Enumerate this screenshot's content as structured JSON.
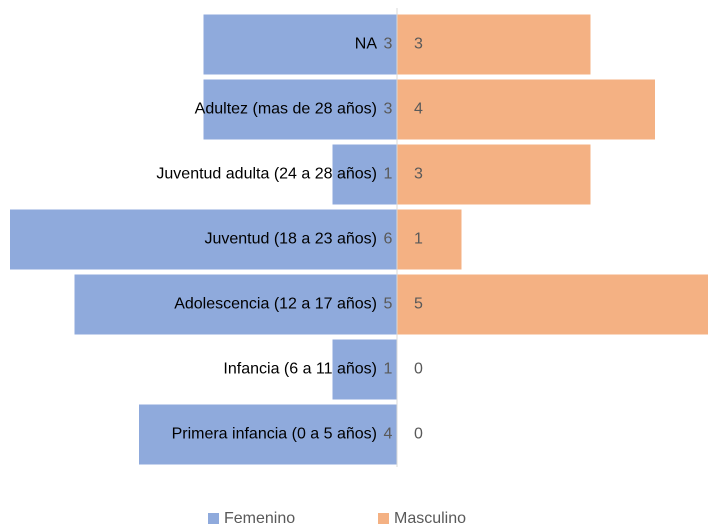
{
  "chart_data": {
    "type": "bar",
    "orientation": "horizontal",
    "categories": [
      "NA",
      "Adultez (mas de 28 años)",
      "Juventud adulta (24 a 28 años)",
      "Juventud (18 a 23 años)",
      "Adolescencia (12 a 17 años)",
      "Infancia (6 a 11 años)",
      "Primera infancia (0 a 5 años)"
    ],
    "series": [
      {
        "name": "Femenino",
        "color": "#8faadc",
        "values": [
          3,
          3,
          1,
          6,
          5,
          1,
          4
        ]
      },
      {
        "name": "Masculino",
        "color": "#f4b183",
        "values": [
          3,
          4,
          3,
          1,
          5,
          0,
          0
        ]
      }
    ],
    "legend": "bottom",
    "grid": false
  }
}
